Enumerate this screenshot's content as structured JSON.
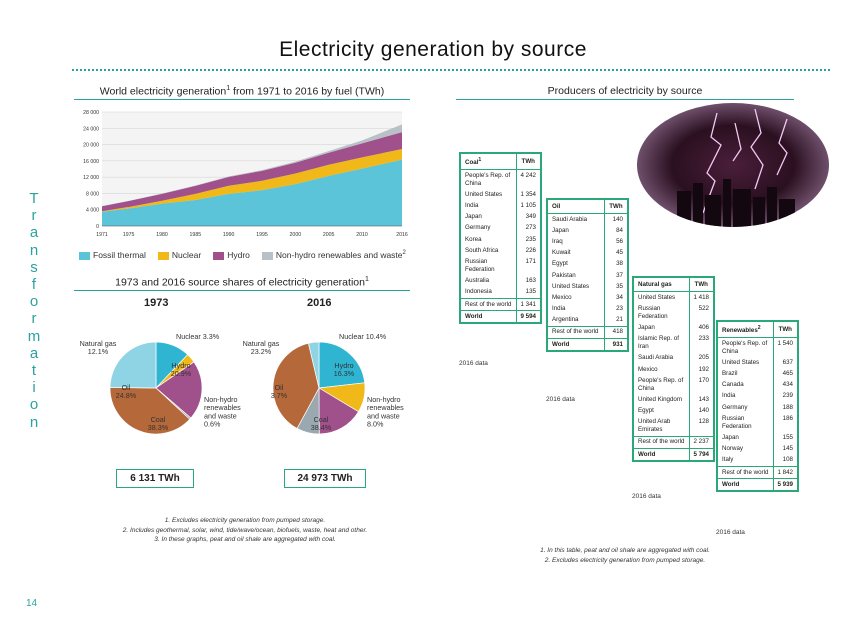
{
  "page": {
    "title": "Electricity generation by source",
    "side_label": [
      "T",
      "r",
      "a",
      "n",
      "s",
      "f",
      "o",
      "r",
      "m",
      "a",
      "t",
      "i",
      "o",
      "n"
    ],
    "page_number": "14"
  },
  "area_chart": {
    "heading": "World electricity generation",
    "heading_sup": "1",
    "heading_tail": " from 1971 to 2016 by fuel (TWh)"
  },
  "shares": {
    "heading": "1973 and 2016 source shares of electricity generation",
    "heading_sup": "1",
    "y1973": "1973",
    "y2016": "2016",
    "total_1973": "6 131 TWh",
    "total_2016": "24 973 TWh"
  },
  "notes_left": [
    "1. Excludes electricity generation from pumped storage.",
    "2. Includes geothermal, solar, wind, tide/wave/ocean, biofuels, waste, heat and other.",
    "3. In these graphs, peat and oil shale are aggregated with coal."
  ],
  "producers": {
    "heading": "Producers of electricity by source",
    "notes": [
      "1. In this table, peat and oil shale are aggregated with coal.",
      "2. Excludes electricity generation from pumped storage."
    ]
  },
  "tables": {
    "data_label": "2016 data",
    "coal": {
      "h1": "Coal",
      "h1_sup": "1",
      "h2": "TWh",
      "rows": [
        [
          "People's Rep. of China",
          "4 242"
        ],
        [
          "United States",
          "1 354"
        ],
        [
          "India",
          "1 105"
        ],
        [
          "Japan",
          "349"
        ],
        [
          "Germany",
          "273"
        ],
        [
          "Korea",
          "235"
        ],
        [
          "South Africa",
          "226"
        ],
        [
          "Russian Federation",
          "171"
        ],
        [
          "Australia",
          "163"
        ],
        [
          "Indonesia",
          "135"
        ]
      ],
      "rest": [
        "Rest of the world",
        "1 341"
      ],
      "world": [
        "World",
        "9 594"
      ]
    },
    "oil": {
      "h1": "Oil",
      "h2": "TWh",
      "rows": [
        [
          "Saudi Arabia",
          "140"
        ],
        [
          "Japan",
          "84"
        ],
        [
          "Iraq",
          "56"
        ],
        [
          "Kuwait",
          "45"
        ],
        [
          "Egypt",
          "38"
        ],
        [
          "Pakistan",
          "37"
        ],
        [
          "United States",
          "35"
        ],
        [
          "Mexico",
          "34"
        ],
        [
          "India",
          "23"
        ],
        [
          "Argentina",
          "21"
        ]
      ],
      "rest": [
        "Rest of the world",
        "418"
      ],
      "world": [
        "World",
        "931"
      ]
    },
    "gas": {
      "h1": "Natural gas",
      "h2": "TWh",
      "rows": [
        [
          "United States",
          "1 418"
        ],
        [
          "Russian Federation",
          "522"
        ],
        [
          "Japan",
          "406"
        ],
        [
          "Islamic Rep. of Iran",
          "233"
        ],
        [
          "Saudi Arabia",
          "205"
        ],
        [
          "Mexico",
          "192"
        ],
        [
          "People's Rep. of China",
          "170"
        ],
        [
          "United Kingdom",
          "143"
        ],
        [
          "Egypt",
          "140"
        ],
        [
          "United Arab Emirates",
          "128"
        ]
      ],
      "rest": [
        "Rest of the world",
        "2 237"
      ],
      "world": [
        "World",
        "5 794"
      ]
    },
    "ren": {
      "h1": "Renewables",
      "h1_sup": "2",
      "h2": "TWh",
      "rows": [
        [
          "People's Rep. of China",
          "1 540"
        ],
        [
          "United States",
          "637"
        ],
        [
          "Brazil",
          "465"
        ],
        [
          "Canada",
          "434"
        ],
        [
          "India",
          "239"
        ],
        [
          "Germany",
          "188"
        ],
        [
          "Russian Federation",
          "186"
        ],
        [
          "Japan",
          "155"
        ],
        [
          "Norway",
          "145"
        ],
        [
          "Italy",
          "108"
        ]
      ],
      "rest": [
        "Rest of the world",
        "1 842"
      ],
      "world": [
        "World",
        "5 939"
      ]
    }
  },
  "chart_data": [
    {
      "type": "area",
      "title": "World electricity generation from 1971 to 2016 by fuel (TWh)",
      "ylim": [
        0,
        28000
      ],
      "yticks": [
        "0",
        "4 000",
        "8 000",
        "12 000",
        "16 000",
        "20 000",
        "24 000",
        "28 000"
      ],
      "xticks": [
        "1971",
        "1975",
        "1980",
        "1985",
        "1990",
        "1995",
        "2000",
        "2005",
        "2010",
        "2016"
      ],
      "x": [
        1971,
        1975,
        1980,
        1985,
        1990,
        1995,
        2000,
        2005,
        2010,
        2016
      ],
      "series": [
        {
          "name": "Fossil thermal",
          "color": "#5bc4d8",
          "values": [
            3500,
            4300,
            5500,
            6400,
            7900,
            8800,
            10300,
            12300,
            14100,
            16300
          ]
        },
        {
          "name": "Nuclear",
          "color": "#f0b818",
          "values": [
            110,
            380,
            700,
            1500,
            2000,
            2300,
            2600,
            2750,
            2750,
            2600
          ]
        },
        {
          "name": "Hydro",
          "color": "#a0508a",
          "values": [
            1250,
            1450,
            1700,
            1950,
            2150,
            2450,
            2650,
            2950,
            3450,
            4150
          ]
        },
        {
          "name": "Non-hydro renewables and waste",
          "name_sup": "2",
          "color": "#b8c0c8",
          "values": [
            40,
            50,
            70,
            90,
            130,
            170,
            250,
            400,
            700,
            1900
          ]
        }
      ]
    },
    {
      "type": "pie",
      "title": "1973",
      "slices": [
        {
          "name": "Natural gas",
          "value": 12.1,
          "color": "#2fb5d2"
        },
        {
          "name": "Nuclear",
          "value": 3.3,
          "color": "#f0b818"
        },
        {
          "name": "Hydro",
          "value": 20.9,
          "color": "#a0508a"
        },
        {
          "name": "Non-hydro renewables and waste",
          "value": 0.6,
          "color": "#9aa8b0"
        },
        {
          "name": "Coal",
          "value": 38.3,
          "color": "#b5683a"
        },
        {
          "name": "Oil",
          "value": 24.8,
          "color": "#8fd4e4"
        }
      ],
      "labels": {
        "gas": [
          "Natural gas",
          "12.1%"
        ],
        "nuclear": [
          "Nuclear 3.3%"
        ],
        "hydro": [
          "Hydro",
          "20.9%"
        ],
        "nonhydro": [
          "Non-hydro",
          "renewables",
          "and waste",
          "0.6%"
        ],
        "coal": [
          "Coal",
          "38.3%"
        ],
        "oil": [
          "Oil",
          "24.8%"
        ]
      }
    },
    {
      "type": "pie",
      "title": "2016",
      "slices": [
        {
          "name": "Natural gas",
          "value": 23.2,
          "color": "#2fb5d2"
        },
        {
          "name": "Nuclear",
          "value": 10.4,
          "color": "#f0b818"
        },
        {
          "name": "Hydro",
          "value": 16.3,
          "color": "#a0508a"
        },
        {
          "name": "Non-hydro renewables and waste",
          "value": 8.0,
          "color": "#9aa8b0"
        },
        {
          "name": "Coal",
          "value": 38.4,
          "color": "#b5683a"
        },
        {
          "name": "Oil",
          "value": 3.7,
          "color": "#8fd4e4"
        }
      ],
      "labels": {
        "gas": [
          "Natural gas",
          "23.2%"
        ],
        "nuclear": [
          "Nuclear 10.4%"
        ],
        "hydro": [
          "Hydro",
          "16.3%"
        ],
        "nonhydro": [
          "Non-hydro",
          "renewables",
          "and waste",
          "8.0%"
        ],
        "coal": [
          "Coal",
          "38.4%"
        ],
        "oil": [
          "Oil",
          "3.7%"
        ]
      }
    }
  ]
}
